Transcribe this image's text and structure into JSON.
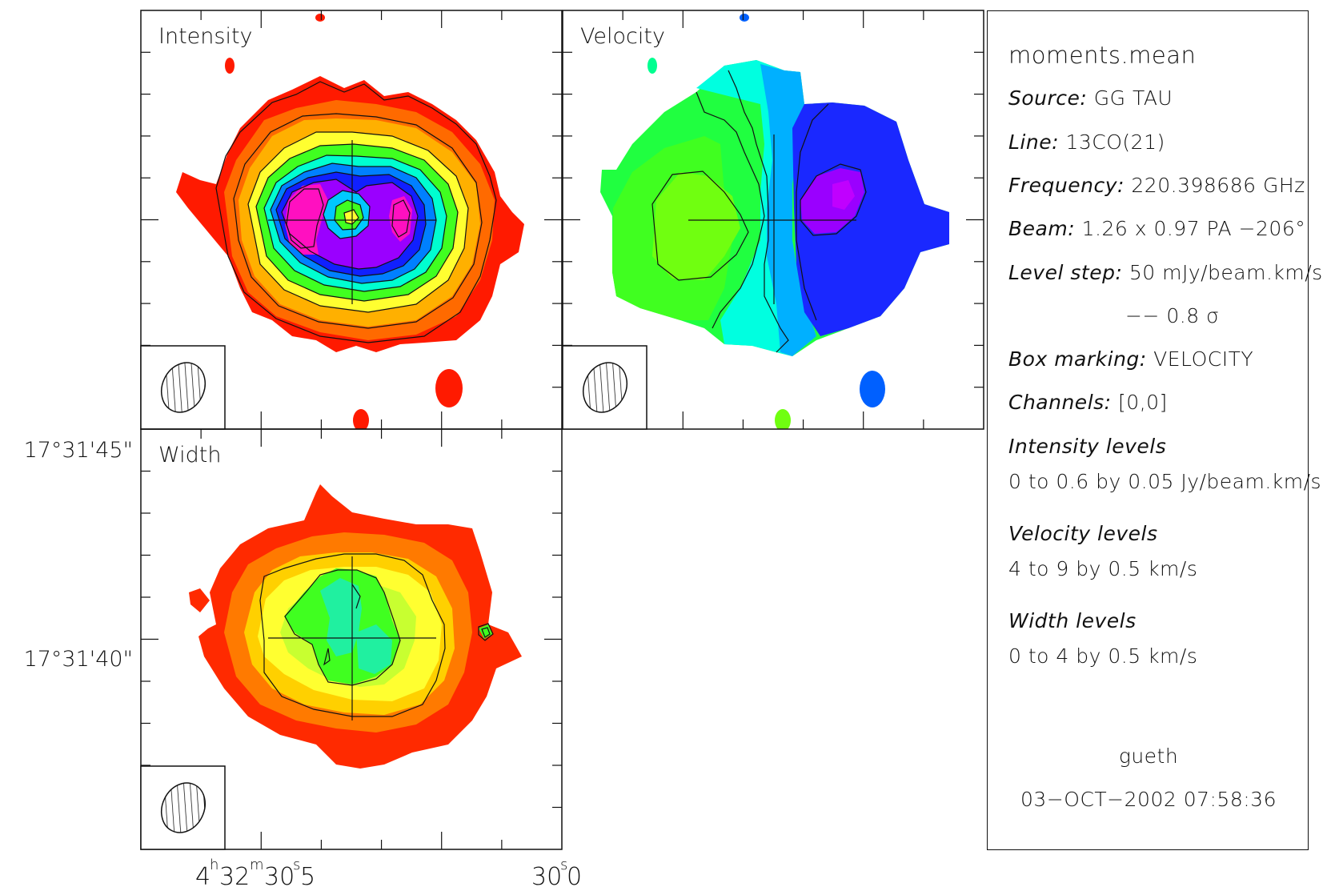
{
  "panels": {
    "intensity_title": "Intensity",
    "velocity_title": "Velocity",
    "width_title": "Width"
  },
  "axes": {
    "dec_tick_1": "17°31'45\"",
    "dec_tick_2": "17°31'40\"",
    "ra_tick_1_h": "4",
    "ra_tick_1_m": "32",
    "ra_tick_1_s": "30",
    "ra_tick_1_frac": "5",
    "ra_tick_2_s": "30",
    "ra_tick_2_frac": "0"
  },
  "info": {
    "file": "moments.mean",
    "source_label": "Source:",
    "source_value": "GG TAU",
    "line_label": "Line:",
    "line_value": "13CO(21)",
    "freq_label": "Frequency:",
    "freq_value": "220.398686 GHz",
    "beam_label": "Beam:",
    "beam_value": "1.26 x 0.97 PA −206°",
    "level_label": "Level step:",
    "level_value": "50 mJy/beam.km/s",
    "sigma_value": "−−   0.8 σ",
    "box_label": "Box marking:",
    "box_value": "VELOCITY",
    "channels_label": "Channels:",
    "channels_value": "[0,0]",
    "int_levels_label": "Intensity levels",
    "int_levels_value": "0 to 0.6 by 0.05 Jy/beam.km/s",
    "vel_levels_label": "Velocity levels",
    "vel_levels_value": "4 to 9 by 0.5 km/s",
    "wid_levels_label": "Width levels",
    "wid_levels_value": "0 to 4 by 0.5 km/s",
    "user": "gueth",
    "date": "03−OCT−2002 07:58:36"
  },
  "colors": {
    "frame": "#111111",
    "red": "#ff1a00",
    "orange": "#ff8000",
    "yellow": "#ffff30",
    "green": "#40ff20",
    "cyan": "#00ffff",
    "blue": "#2030ff",
    "violet": "#b000ff",
    "magenta": "#ff10b0"
  }
}
